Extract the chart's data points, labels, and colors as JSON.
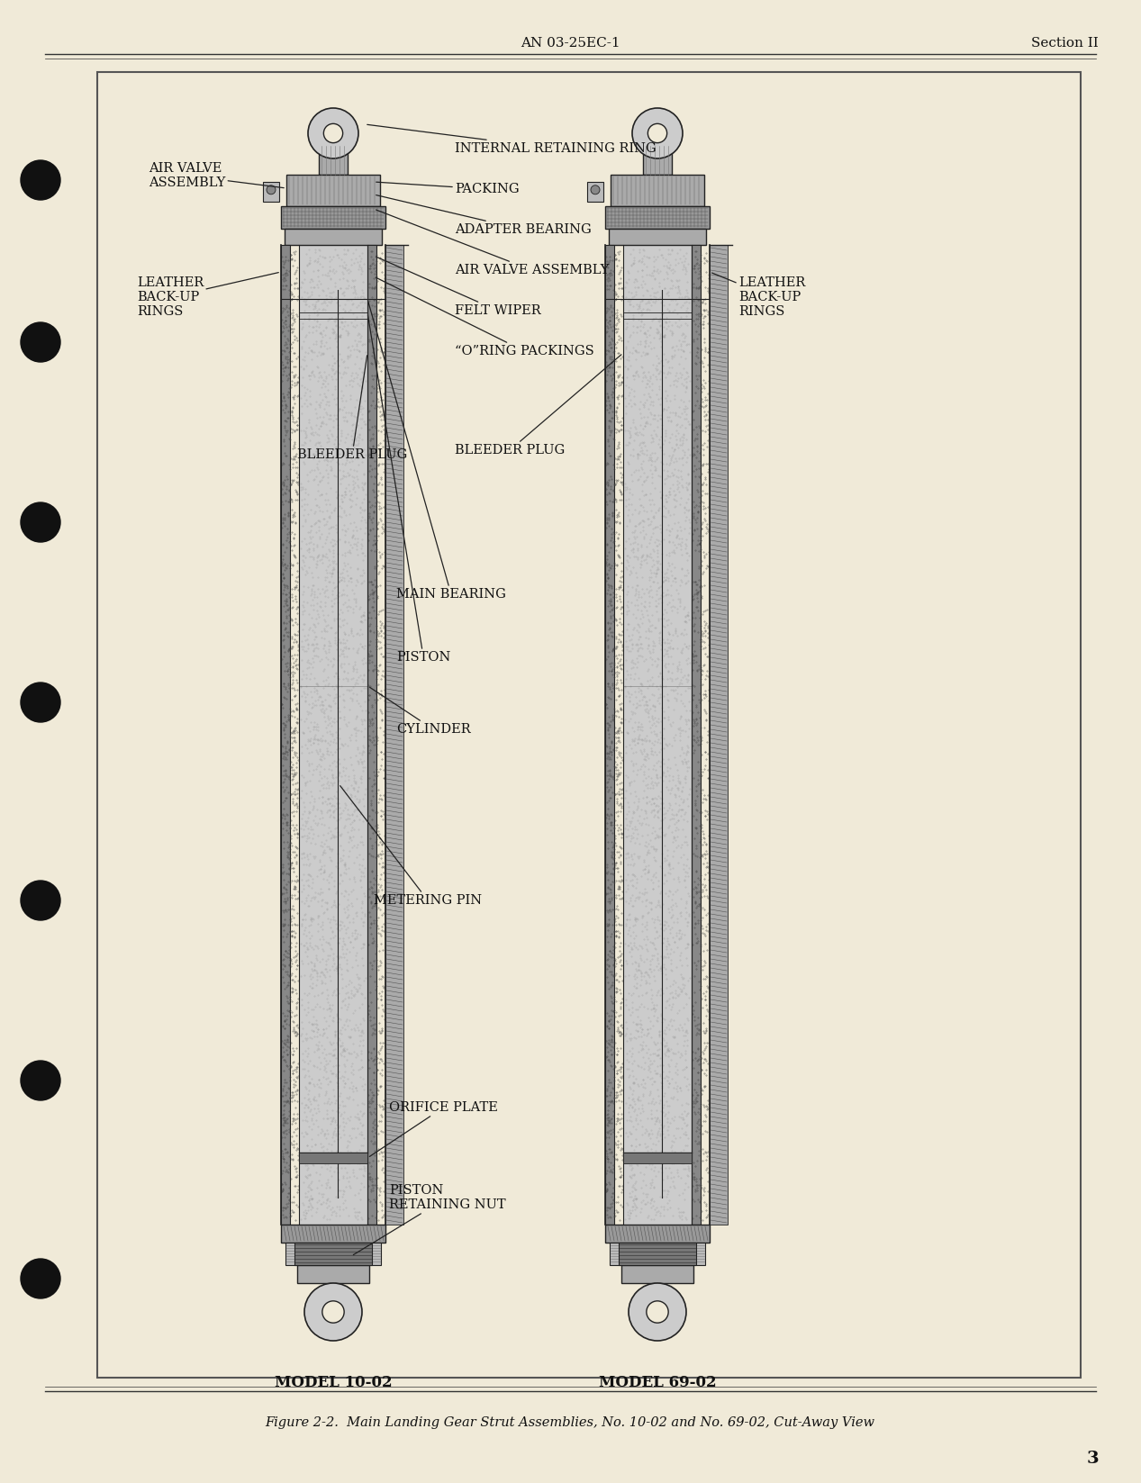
{
  "bg_color": "#f0ead8",
  "page_bg": "#f0ead8",
  "header_center": "AN 03-25EC-1",
  "header_right": "Section II",
  "footer_caption": "Figure 2-2.  Main Landing Gear Strut Assemblies, No. 10-02 and No. 69-02, Cut-Away View",
  "footer_page_num": "3",
  "model_left": "MODEL 10-02",
  "model_right": "MODEL 69-02",
  "box_border": "#444444",
  "text_color": "#111111",
  "line_color": "#222222",
  "gray_dark": "#333333",
  "gray_med": "#666666",
  "gray_light": "#999999",
  "gray_fill": "#888888",
  "stipple_color": "#555555"
}
